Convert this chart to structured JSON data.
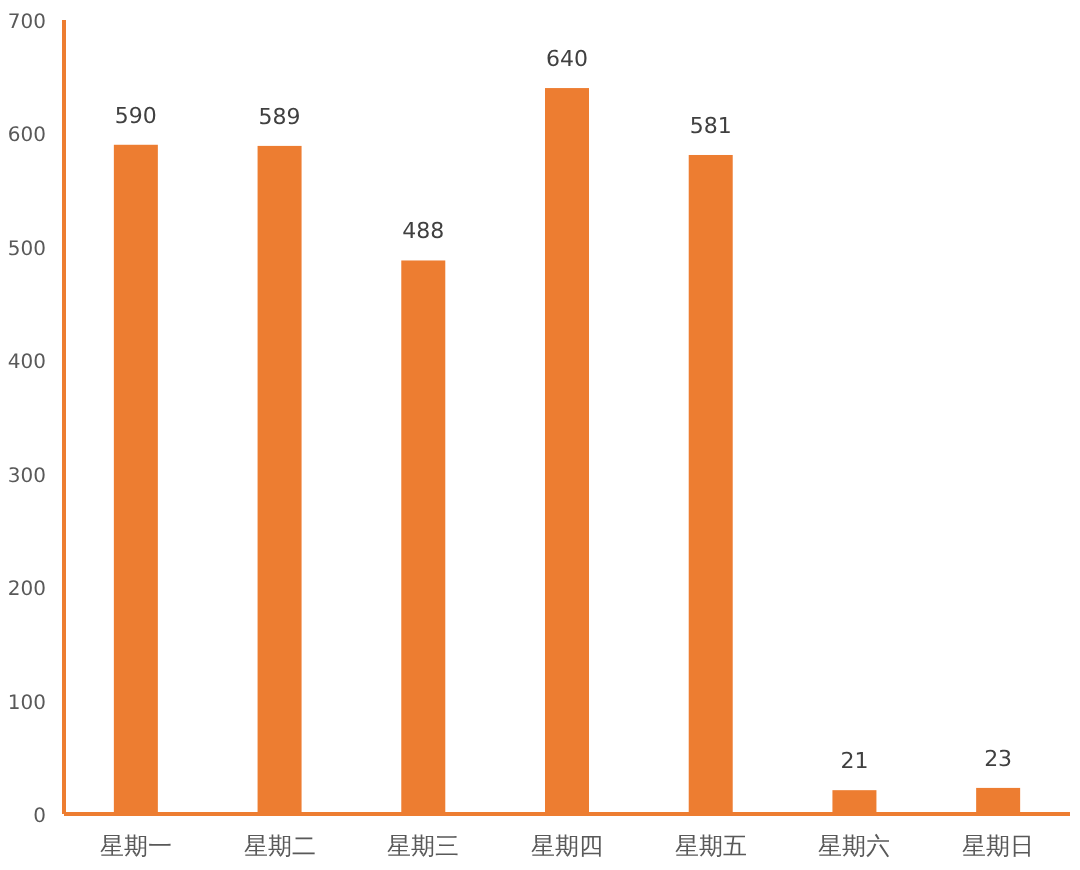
{
  "chart_data": {
    "type": "bar",
    "categories": [
      "星期一",
      "星期二",
      "星期三",
      "星期四",
      "星期五",
      "星期六",
      "星期日"
    ],
    "values": [
      590,
      589,
      488,
      640,
      581,
      21,
      23
    ],
    "color": "#ed7d31",
    "ylim": [
      0,
      700
    ],
    "yticks": [
      0,
      100,
      200,
      300,
      400,
      500,
      600,
      700
    ],
    "data_labels": true,
    "grid": false
  }
}
